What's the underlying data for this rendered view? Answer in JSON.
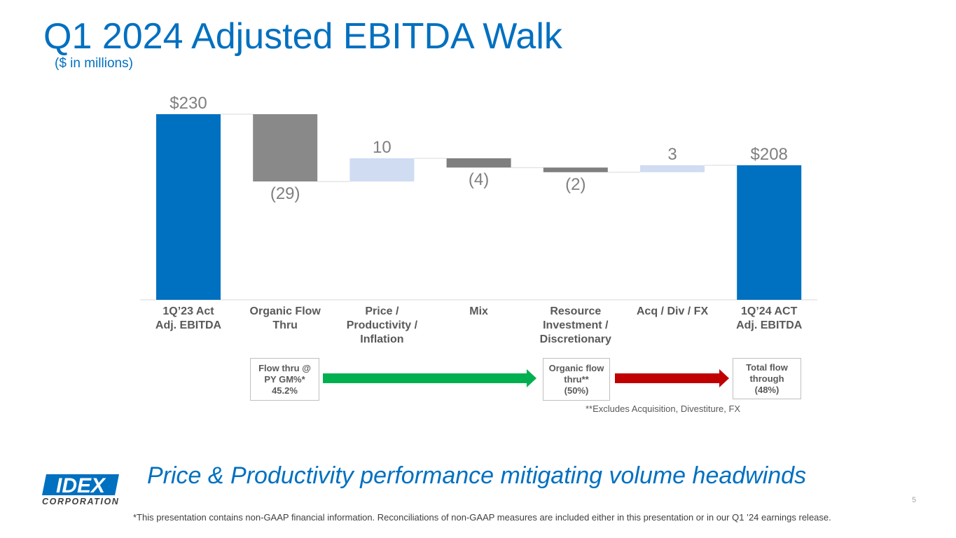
{
  "header": {
    "title": "Q1 2024 Adjusted EBITDA Walk",
    "subtitle": "($ in millions)"
  },
  "chart_data": {
    "type": "waterfall",
    "ylim": [
      150,
      240
    ],
    "categories": [
      "1Q’23 Act\nAdj. EBITDA",
      "Organic Flow\nThru",
      "Price /\nProductivity /\nInflation",
      "Mix",
      "Resource\nInvestment /\nDiscretionary",
      "Acq / Div / FX",
      "1Q’24 ACT\nAdj. EBITDA"
    ],
    "values": [
      230,
      -29,
      10,
      -4,
      -2,
      3,
      208
    ],
    "kinds": [
      "total",
      "delta",
      "delta",
      "delta",
      "delta",
      "delta",
      "total"
    ],
    "labels": [
      "$230",
      "(29)",
      "10",
      "(4)",
      "(2)",
      "3",
      "$208"
    ],
    "colors": {
      "total": "#0070C0",
      "negative": "#898989",
      "positive": "#CFDCF2",
      "negative_small": "#7F7F7F"
    }
  },
  "flow": {
    "box1": "Flow thru @\nPY GM%*\n45.2%",
    "box2": "Organic flow\nthru**\n(50%)",
    "box3": "Total flow\nthrough\n(48%)",
    "arrow1_color": "#00B050",
    "arrow2_color": "#C00000",
    "note": "**Excludes Acquisition, Divestiture, FX"
  },
  "tagline": "Price & Productivity performance mitigating volume headwinds",
  "logo": {
    "name": "IDEX",
    "sub": "CORPORATION"
  },
  "footer": "*This presentation contains non-GAAP financial information. Reconciliations of non-GAAP measures are included either in this presentation or in our Q1 ’24 earnings release.",
  "page_number": "5"
}
